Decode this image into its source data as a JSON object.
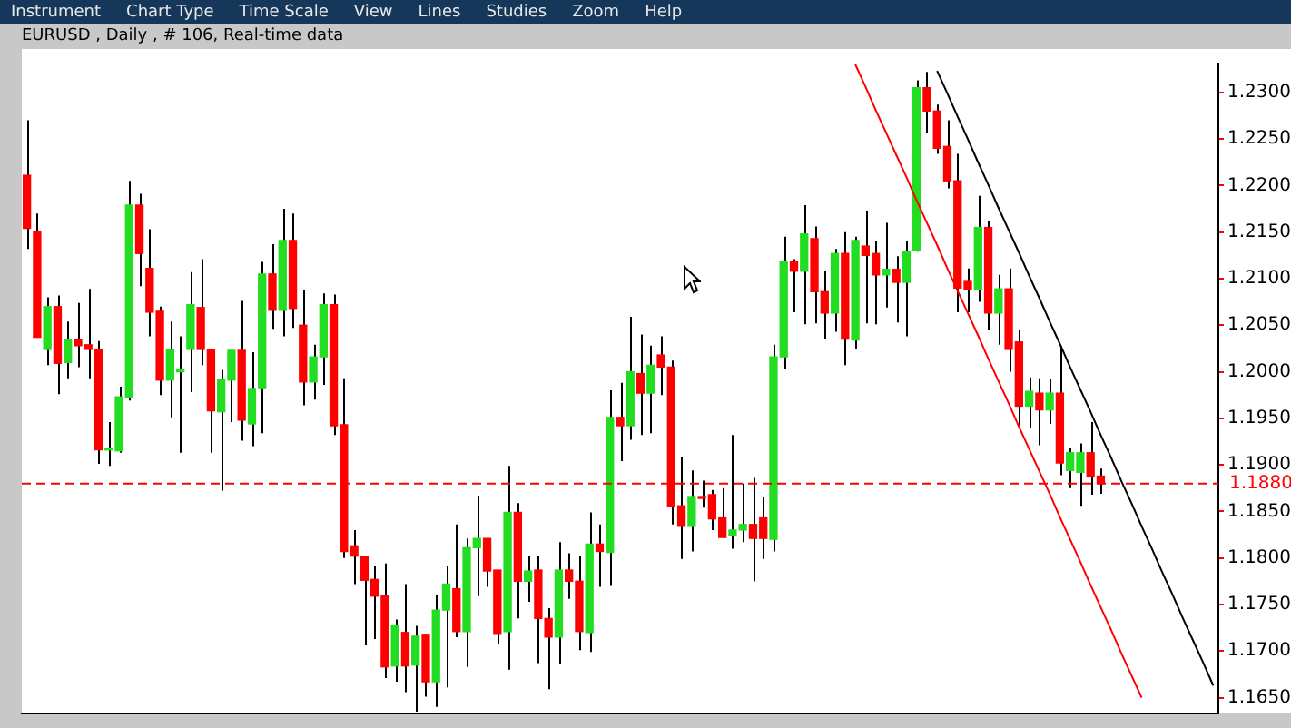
{
  "chart_data": {
    "type": "candlestick",
    "title": "EURUSD , Daily , # 106, Real-time data",
    "annotations": [
      "Instrument",
      "Chart Type",
      "Time Scale",
      "View",
      "Lines",
      "Studies",
      "Zoom",
      "Help"
    ],
    "categories": [
      null,
      null,
      null,
      null,
      null,
      null,
      null,
      null,
      null,
      null,
      null,
      null,
      null,
      null,
      null,
      null,
      null,
      null,
      null,
      null,
      null,
      null,
      null,
      null,
      null,
      null,
      null,
      null,
      null,
      null,
      null,
      null,
      null,
      null,
      null,
      null,
      null,
      null,
      null,
      null,
      null,
      null,
      null,
      null,
      null,
      null,
      null,
      null,
      null,
      null,
      null,
      null,
      null,
      null,
      null,
      null,
      null,
      null,
      null,
      null,
      null,
      null,
      null,
      null,
      null,
      null,
      null,
      null,
      null,
      null,
      null,
      null,
      null,
      null,
      null,
      null,
      null,
      null,
      null,
      null,
      null,
      null,
      null,
      null,
      null,
      null,
      null,
      null,
      null,
      null,
      null,
      null,
      null,
      null,
      null,
      null,
      null,
      null,
      null,
      null,
      null,
      null,
      null,
      null,
      null,
      null,
      null,
      null,
      null,
      null,
      null,
      null,
      null,
      null,
      null,
      null,
      null
    ],
    "ohlc": [
      [
        1.2211,
        1.227,
        1.2132,
        1.2154
      ],
      [
        1.2151,
        1.217,
        1.2037,
        1.2037
      ],
      [
        1.2024,
        1.208,
        1.2007,
        1.207
      ],
      [
        1.207,
        1.2082,
        1.1976,
        1.2009
      ],
      [
        1.201,
        1.2054,
        1.1993,
        1.2034
      ],
      [
        1.2034,
        1.2074,
        1.2005,
        1.2028
      ],
      [
        1.2029,
        1.2089,
        1.1993,
        1.2024
      ],
      [
        1.2024,
        1.2033,
        1.1901,
        1.1916
      ],
      [
        1.1916,
        1.1946,
        1.1899,
        1.1917
      ],
      [
        1.1915,
        1.1984,
        1.1913,
        1.1973
      ],
      [
        1.1973,
        1.2205,
        1.1969,
        1.2179
      ],
      [
        1.2179,
        1.2191,
        1.2092,
        1.2127
      ],
      [
        1.2111,
        1.2153,
        1.2038,
        1.2064
      ],
      [
        1.2065,
        1.207,
        1.1975,
        1.1991
      ],
      [
        1.1991,
        1.2054,
        1.1951,
        1.2024
      ],
      [
        1.2,
        1.2038,
        1.1913,
        1.2001
      ],
      [
        1.2024,
        1.2107,
        1.1978,
        1.2072
      ],
      [
        1.2069,
        1.2121,
        1.2007,
        1.2024
      ],
      [
        1.2024,
        1.2024,
        1.1913,
        1.1958
      ],
      [
        1.1957,
        1.2002,
        1.1872,
        1.1992
      ],
      [
        1.1991,
        1.2023,
        1.1946,
        1.2023
      ],
      [
        1.2023,
        1.2076,
        1.1926,
        1.1948
      ],
      [
        1.1944,
        1.2021,
        1.192,
        1.1982
      ],
      [
        1.1983,
        1.2118,
        1.1934,
        1.2105
      ],
      [
        1.2105,
        1.2137,
        1.2046,
        1.2066
      ],
      [
        1.2066,
        1.2175,
        1.2038,
        1.2141
      ],
      [
        1.2141,
        1.217,
        1.2047,
        1.2068
      ],
      [
        1.205,
        1.2088,
        1.1964,
        1.1989
      ],
      [
        1.1989,
        1.2029,
        1.197,
        1.2016
      ],
      [
        1.2016,
        1.2084,
        1.1986,
        1.2072
      ],
      [
        1.2072,
        1.2083,
        1.1932,
        1.1942
      ],
      [
        1.1943,
        1.1993,
        1.18,
        1.1807
      ],
      [
        1.1813,
        1.183,
        1.1772,
        1.1802
      ],
      [
        1.1802,
        1.1802,
        1.1706,
        1.1776
      ],
      [
        1.1777,
        1.1791,
        1.1713,
        1.1759
      ],
      [
        1.176,
        1.1794,
        1.1671,
        1.1683
      ],
      [
        1.1684,
        1.1734,
        1.1667,
        1.1728
      ],
      [
        1.172,
        1.1772,
        1.1656,
        1.1684
      ],
      [
        1.1685,
        1.1727,
        1.1635,
        1.1716
      ],
      [
        1.1718,
        1.1718,
        1.1651,
        1.1667
      ],
      [
        1.1667,
        1.176,
        1.164,
        1.1744
      ],
      [
        1.1744,
        1.1792,
        1.1661,
        1.1772
      ],
      [
        1.1767,
        1.1836,
        1.1715,
        1.1721
      ],
      [
        1.1721,
        1.1821,
        1.1683,
        1.1811
      ],
      [
        1.1811,
        1.1867,
        1.1759,
        1.1821
      ],
      [
        1.1821,
        1.1821,
        1.1769,
        1.1786
      ],
      [
        1.1787,
        1.1787,
        1.1708,
        1.1719
      ],
      [
        1.1721,
        1.1899,
        1.168,
        1.1849
      ],
      [
        1.1849,
        1.1859,
        1.1735,
        1.1775
      ],
      [
        1.1775,
        1.1802,
        1.1753,
        1.1786
      ],
      [
        1.1787,
        1.1802,
        1.1687,
        1.1735
      ],
      [
        1.1735,
        1.1746,
        1.1659,
        1.1715
      ],
      [
        1.1715,
        1.1817,
        1.1686,
        1.1787
      ],
      [
        1.1787,
        1.1805,
        1.1756,
        1.1775
      ],
      [
        1.1775,
        1.1802,
        1.1701,
        1.1721
      ],
      [
        1.172,
        1.1849,
        1.1699,
        1.1815
      ],
      [
        1.1815,
        1.1836,
        1.1769,
        1.1807
      ],
      [
        1.1806,
        1.198,
        1.177,
        1.1951
      ],
      [
        1.1951,
        1.1988,
        1.1904,
        1.1942
      ],
      [
        1.1942,
        1.2059,
        1.1927,
        1.2
      ],
      [
        1.1998,
        1.204,
        1.1932,
        1.1977
      ],
      [
        1.1977,
        1.2028,
        1.1934,
        1.2007
      ],
      [
        1.2018,
        1.2038,
        1.1975,
        1.2005
      ],
      [
        1.2005,
        1.2012,
        1.1836,
        1.1856
      ],
      [
        1.1856,
        1.1908,
        1.1799,
        1.1834
      ],
      [
        1.1834,
        1.1894,
        1.1807,
        1.1866
      ],
      [
        1.1866,
        1.1883,
        1.1854,
        1.1864
      ],
      [
        1.1868,
        1.1873,
        1.183,
        1.1842
      ],
      [
        1.1843,
        1.1875,
        1.1822,
        1.1822
      ],
      [
        1.1824,
        1.1932,
        1.181,
        1.183
      ],
      [
        1.183,
        1.188,
        1.1817,
        1.1836
      ],
      [
        1.1836,
        1.1886,
        1.1775,
        1.1821
      ],
      [
        1.1843,
        1.1866,
        1.1799,
        1.1821
      ],
      [
        1.182,
        1.2029,
        1.1807,
        1.2016
      ],
      [
        1.2016,
        1.2145,
        1.2003,
        1.2118
      ],
      [
        1.2118,
        1.2121,
        1.2064,
        1.2108
      ],
      [
        1.2108,
        1.2179,
        1.2051,
        1.2148
      ],
      [
        1.2143,
        1.2156,
        1.2052,
        1.2086
      ],
      [
        1.2086,
        1.2108,
        1.2035,
        1.2063
      ],
      [
        1.2063,
        1.2132,
        1.2043,
        1.2127
      ],
      [
        1.2127,
        1.215,
        1.2007,
        1.2035
      ],
      [
        1.2034,
        1.2145,
        1.2024,
        1.2141
      ],
      [
        1.2135,
        1.2173,
        1.2052,
        1.2125
      ],
      [
        1.2127,
        1.2141,
        1.2051,
        1.2104
      ],
      [
        1.2104,
        1.216,
        1.2069,
        1.211
      ],
      [
        1.211,
        1.2124,
        1.2053,
        1.2096
      ],
      [
        1.2096,
        1.2141,
        1.2038,
        1.2129
      ],
      [
        1.213,
        1.2313,
        1.2129,
        1.2305
      ],
      [
        1.2305,
        1.2322,
        1.2256,
        1.228
      ],
      [
        1.228,
        1.2287,
        1.2234,
        1.224
      ],
      [
        1.2242,
        1.227,
        1.2197,
        1.2205
      ],
      [
        1.2205,
        1.2234,
        1.2064,
        1.209
      ],
      [
        1.2097,
        1.2111,
        1.2064,
        1.2088
      ],
      [
        1.2088,
        1.2189,
        1.2075,
        1.2155
      ],
      [
        1.2155,
        1.2162,
        1.2045,
        1.2063
      ],
      [
        1.2063,
        1.2104,
        1.2029,
        1.2089
      ],
      [
        1.2089,
        1.2111,
        1.2,
        1.2024
      ],
      [
        1.2032,
        1.2045,
        1.1941,
        1.1963
      ],
      [
        1.1963,
        1.1994,
        1.194,
        1.1979
      ],
      [
        1.1977,
        1.1993,
        1.1921,
        1.1959
      ],
      [
        1.1959,
        1.1992,
        1.1944,
        1.1977
      ],
      [
        1.1977,
        1.2027,
        1.1889,
        1.1902
      ],
      [
        1.1894,
        1.1918,
        1.1875,
        1.1913
      ],
      [
        1.1892,
        1.1923,
        1.1856,
        1.1913
      ],
      [
        1.1913,
        1.1946,
        1.1868,
        1.1887
      ],
      [
        1.1888,
        1.1896,
        1.1869,
        1.188
      ],
      null,
      null,
      null,
      null,
      null,
      null,
      null,
      null,
      null,
      null,
      null
    ],
    "colors": [
      "#ff0000",
      "#ff0000",
      "#22dd22",
      "#ff0000",
      "#22dd22",
      "#ff0000",
      "#ff0000",
      "#ff0000",
      "#22dd22",
      "#22dd22",
      "#22dd22",
      "#ff0000",
      "#ff0000",
      "#ff0000",
      "#22dd22",
      "#22dd22",
      "#22dd22",
      "#ff0000",
      "#ff0000",
      "#22dd22",
      "#22dd22",
      "#ff0000",
      "#22dd22",
      "#22dd22",
      "#ff0000",
      "#22dd22",
      "#ff0000",
      "#ff0000",
      "#22dd22",
      "#22dd22",
      "#ff0000",
      "#ff0000",
      "#ff0000",
      "#ff0000",
      "#ff0000",
      "#ff0000",
      "#22dd22",
      "#ff0000",
      "#22dd22",
      "#ff0000",
      "#22dd22",
      "#22dd22",
      "#ff0000",
      "#22dd22",
      "#22dd22",
      "#ff0000",
      "#ff0000",
      "#22dd22",
      "#ff0000",
      "#22dd22",
      "#ff0000",
      "#ff0000",
      "#22dd22",
      "#ff0000",
      "#ff0000",
      "#22dd22",
      "#ff0000",
      "#22dd22",
      "#ff0000",
      "#22dd22",
      "#ff0000",
      "#22dd22",
      "#ff0000",
      "#ff0000",
      "#ff0000",
      "#22dd22",
      "#ff0000",
      "#ff0000",
      "#ff0000",
      "#22dd22",
      "#22dd22",
      "#ff0000",
      "#ff0000",
      "#22dd22",
      "#22dd22",
      "#ff0000",
      "#22dd22",
      "#ff0000",
      "#ff0000",
      "#22dd22",
      "#ff0000",
      "#22dd22",
      "#ff0000",
      "#ff0000",
      "#22dd22",
      "#ff0000",
      "#22dd22",
      "#22dd22",
      "#ff0000",
      "#ff0000",
      "#ff0000",
      "#ff0000",
      "#ff0000",
      "#22dd22",
      "#ff0000",
      "#22dd22",
      "#ff0000",
      "#ff0000",
      "#22dd22",
      "#ff0000",
      "#22dd22",
      "#ff0000",
      "#22dd22",
      "#22dd22",
      "#ff0000",
      "#ff0000",
      null,
      null,
      null,
      null,
      null,
      null,
      null,
      null,
      null,
      null,
      null
    ],
    "series": [
      {
        "type": "line",
        "color": "#ff0000",
        "values": [
          null,
          null,
          null,
          null,
          null,
          null,
          null,
          null,
          null,
          null,
          null,
          null,
          null,
          null,
          null,
          null,
          null,
          null,
          null,
          null,
          null,
          null,
          null,
          null,
          null,
          null,
          null,
          null,
          null,
          null,
          null,
          null,
          null,
          null,
          null,
          null,
          null,
          null,
          null,
          null,
          null,
          null,
          null,
          null,
          null,
          null,
          null,
          null,
          null,
          null,
          null,
          null,
          null,
          null,
          null,
          null,
          null,
          null,
          null,
          null,
          null,
          null,
          null,
          null,
          null,
          null,
          null,
          null,
          null,
          null,
          null,
          null,
          null,
          null,
          null,
          null,
          null,
          null,
          null,
          null,
          null,
          1.233,
          1.2306,
          1.2281,
          1.2257,
          1.2233,
          1.2209,
          1.2184,
          1.216,
          1.2136,
          1.2111,
          1.2087,
          1.2063,
          1.2039,
          1.2014,
          1.199,
          1.1966,
          1.1941,
          1.1917,
          1.1893,
          1.1869,
          1.1844,
          1.182,
          1.1796,
          1.1771,
          1.1747,
          1.1723,
          1.1698,
          1.1674,
          1.165,
          null,
          null,
          null,
          null,
          null,
          null,
          null
        ]
      },
      {
        "type": "line",
        "color": "#000000",
        "values": [
          null,
          null,
          null,
          null,
          null,
          null,
          null,
          null,
          null,
          null,
          null,
          null,
          null,
          null,
          null,
          null,
          null,
          null,
          null,
          null,
          null,
          null,
          null,
          null,
          null,
          null,
          null,
          null,
          null,
          null,
          null,
          null,
          null,
          null,
          null,
          null,
          null,
          null,
          null,
          null,
          null,
          null,
          null,
          null,
          null,
          null,
          null,
          null,
          null,
          null,
          null,
          null,
          null,
          null,
          null,
          null,
          null,
          null,
          null,
          null,
          null,
          null,
          null,
          null,
          null,
          null,
          null,
          null,
          null,
          null,
          null,
          null,
          null,
          null,
          null,
          null,
          null,
          null,
          null,
          null,
          null,
          null,
          null,
          null,
          null,
          null,
          null,
          null,
          null,
          1.2323,
          1.2299,
          1.2274,
          1.225,
          1.2225,
          1.2201,
          1.2176,
          1.2152,
          1.2128,
          1.2103,
          1.2079,
          1.2054,
          1.203,
          1.2005,
          1.1981,
          1.1957,
          1.1932,
          1.1908,
          1.1883,
          1.1859,
          1.1834,
          1.181,
          1.1785,
          1.1761,
          1.1736,
          1.1712,
          1.1688,
          1.1663
        ]
      }
    ],
    "ylim": [
      1.1633,
      1.2331
    ],
    "yticks": [
      {
        "value": 1.165,
        "label": "1.1650"
      },
      {
        "value": 1.17,
        "label": "1.1700"
      },
      {
        "value": 1.175,
        "label": "1.1750"
      },
      {
        "value": 1.18,
        "label": "1.1800"
      },
      {
        "value": 1.185,
        "label": "1.1850"
      },
      {
        "value": 1.19,
        "label": "1.1900"
      },
      {
        "value": 1.195,
        "label": "1.1950"
      },
      {
        "value": 1.2,
        "label": "1.2000"
      },
      {
        "value": 1.205,
        "label": "1.2050"
      },
      {
        "value": 1.21,
        "label": "1.2100"
      },
      {
        "value": 1.215,
        "label": "1.2150"
      },
      {
        "value": 1.22,
        "label": "1.2200"
      },
      {
        "value": 1.225,
        "label": "1.2250"
      },
      {
        "value": 1.23,
        "label": "1.2300"
      }
    ],
    "ref_lines": [
      {
        "axis": "y",
        "value": 1.188,
        "label": "1.1880",
        "color": "#ff0000",
        "line_style": "dashed"
      }
    ],
    "tick_labels": "y"
  }
}
